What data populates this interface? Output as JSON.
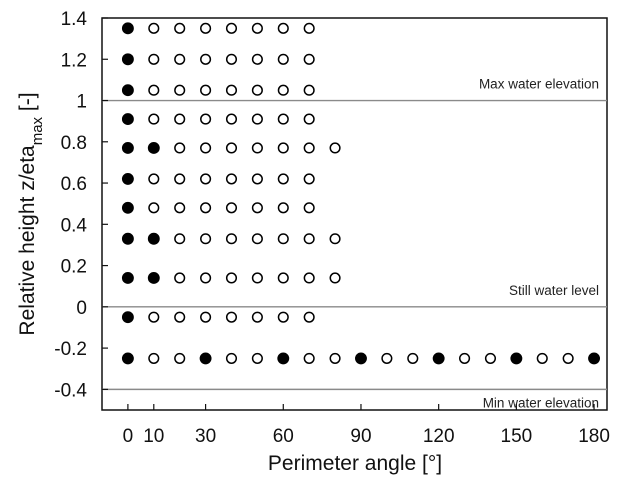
{
  "chart_data": {
    "type": "scatter",
    "xlabel": "Perimeter angle [°]",
    "ylabel": {
      "main": "Relative height z/eta",
      "subscript": "max",
      "suffix": " [-]"
    },
    "xlim": [
      -10,
      185
    ],
    "ylim": [
      -0.5,
      1.4
    ],
    "x_ticks": [
      0,
      10,
      30,
      60,
      90,
      120,
      150,
      180
    ],
    "y_ticks": [
      1.4,
      1.2,
      1,
      0.8,
      0.6,
      0.4,
      0.2,
      0,
      -0.2,
      -0.4
    ],
    "y_tick_labels": [
      "1.4",
      "1.2",
      "1",
      "0.8",
      "0.6",
      "0.4",
      "0.2",
      "0",
      "-0.2",
      "-0.4"
    ],
    "reference_lines": [
      {
        "y": 1,
        "label": "Max water elevation"
      },
      {
        "y": 0,
        "label": "Still water level"
      },
      {
        "y": -0.4,
        "label": "Min water elevation"
      }
    ],
    "rows": [
      {
        "y": 1.35,
        "x": [
          0,
          10,
          20,
          30,
          40,
          50,
          60,
          70
        ],
        "filled": [
          0
        ]
      },
      {
        "y": 1.2,
        "x": [
          0,
          10,
          20,
          30,
          40,
          50,
          60,
          70
        ],
        "filled": [
          0
        ]
      },
      {
        "y": 1.05,
        "x": [
          0,
          10,
          20,
          30,
          40,
          50,
          60,
          70
        ],
        "filled": [
          0
        ]
      },
      {
        "y": 0.91,
        "x": [
          0,
          10,
          20,
          30,
          40,
          50,
          60,
          70
        ],
        "filled": [
          0
        ]
      },
      {
        "y": 0.77,
        "x": [
          0,
          10,
          20,
          30,
          40,
          50,
          60,
          70,
          80
        ],
        "filled": [
          0,
          10
        ]
      },
      {
        "y": 0.62,
        "x": [
          0,
          10,
          20,
          30,
          40,
          50,
          60,
          70
        ],
        "filled": [
          0
        ]
      },
      {
        "y": 0.48,
        "x": [
          0,
          10,
          20,
          30,
          40,
          50,
          60,
          70
        ],
        "filled": [
          0
        ]
      },
      {
        "y": 0.33,
        "x": [
          0,
          10,
          20,
          30,
          40,
          50,
          60,
          70,
          80
        ],
        "filled": [
          0,
          10
        ]
      },
      {
        "y": 0.14,
        "x": [
          0,
          10,
          20,
          30,
          40,
          50,
          60,
          70,
          80
        ],
        "filled": [
          0,
          10
        ]
      },
      {
        "y": -0.05,
        "x": [
          0,
          10,
          20,
          30,
          40,
          50,
          60,
          70
        ],
        "filled": [
          0
        ]
      },
      {
        "y": -0.25,
        "x": [
          0,
          10,
          20,
          30,
          40,
          50,
          60,
          70,
          80,
          90,
          100,
          110,
          120,
          130,
          140,
          150,
          160,
          170,
          180
        ],
        "filled": [
          0,
          30,
          60,
          90,
          120,
          150,
          180
        ]
      }
    ]
  }
}
